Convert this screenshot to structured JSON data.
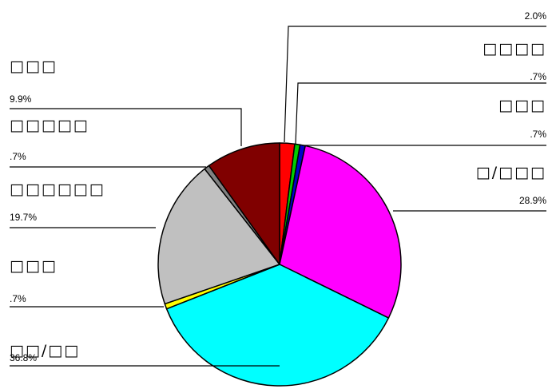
{
  "chart_data": {
    "type": "pie",
    "title": "",
    "start_angle_deg": 0,
    "direction": "clockwise",
    "slices": [
      {
        "label": "□□□□",
        "value": 2.0,
        "value_label": "2.0%",
        "color": "#ff0000"
      },
      {
        "label": "□□□",
        "value": 0.7,
        "value_label": ".7%",
        "color": "#00cc00"
      },
      {
        "label": "□/□□□",
        "value": 0.7,
        "value_label": ".7%",
        "color": "#0000cc"
      },
      {
        "label": "□□/□□",
        "value": 28.9,
        "value_label": "28.9%",
        "color": "#ff00ff"
      },
      {
        "label": "□□□",
        "value": 36.8,
        "value_label": "36.8%",
        "color": "#00ffff"
      },
      {
        "label": "□□□",
        "value": 0.7,
        "value_label": ".7%",
        "color": "#ffff00"
      },
      {
        "label": "□□□□□□",
        "value": 19.7,
        "value_label": "19.7%",
        "color": "#c0c0c0"
      },
      {
        "label": "□□□□□",
        "value": 0.7,
        "value_label": ".7%",
        "color": "#808080"
      },
      {
        "label": "",
        "value": 9.9,
        "value_label": "9.9%",
        "color": "#800000"
      }
    ]
  }
}
